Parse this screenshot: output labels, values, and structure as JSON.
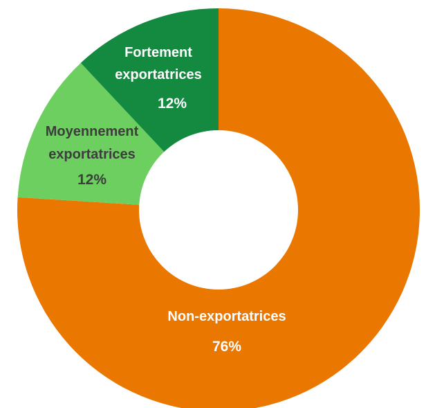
{
  "chart_data": {
    "type": "pie",
    "title": "",
    "slices": [
      {
        "label": "Non-exportatrices",
        "value": 76,
        "display": "76%",
        "color": "#EA7800",
        "text_color": "#FFFFFF"
      },
      {
        "label_lines": [
          "Moyennement",
          "exportatrices"
        ],
        "value": 12,
        "display": "12%",
        "color": "#6CCF5F",
        "text_color": "#3D3D3D"
      },
      {
        "label_lines": [
          "Fortement",
          "exportatrices"
        ],
        "value": 12,
        "display": "12%",
        "color": "#138A40",
        "text_color": "#FFFFFF"
      }
    ],
    "donut": true,
    "legend": "none"
  }
}
